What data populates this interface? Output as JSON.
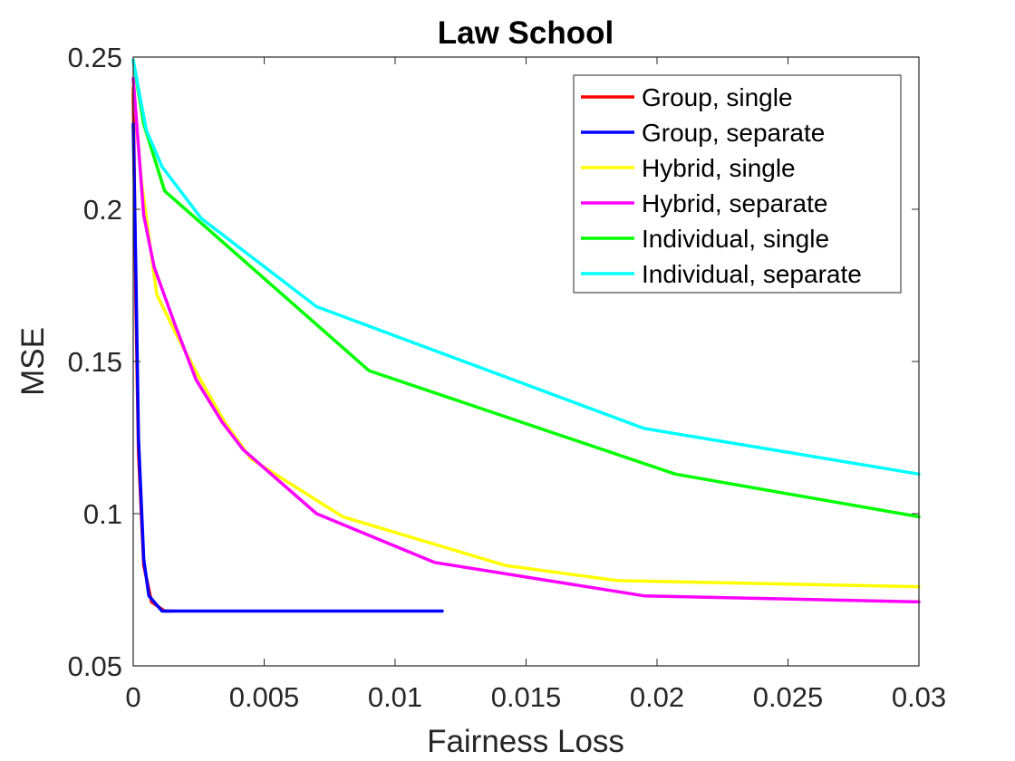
{
  "chart_data": {
    "type": "line",
    "title": "Law School",
    "xlabel": "Fairness Loss",
    "ylabel": "MSE",
    "xlim": [
      0,
      0.03
    ],
    "ylim": [
      0.05,
      0.25
    ],
    "xticks": [
      0,
      0.005,
      0.01,
      0.015,
      0.02,
      0.025,
      0.03
    ],
    "xtick_labels": [
      "0",
      "0.005",
      "0.01",
      "0.015",
      "0.02",
      "0.025",
      "0.03"
    ],
    "yticks": [
      0.05,
      0.1,
      0.15,
      0.2,
      0.25
    ],
    "ytick_labels": [
      "0.05",
      "0.1",
      "0.15",
      "0.2",
      "0.25"
    ],
    "grid": false,
    "legend_position": "top-right",
    "series": [
      {
        "name": "Group, single",
        "color": "#ff0000",
        "points": [
          [
            0,
            0.24
          ],
          [
            0.0001,
            0.17
          ],
          [
            0.0002,
            0.12
          ],
          [
            0.0004,
            0.083
          ],
          [
            0.0007,
            0.071
          ],
          [
            0.0012,
            0.068
          ],
          [
            0.0015,
            0.068
          ]
        ]
      },
      {
        "name": "Group, separate",
        "color": "#0000ff",
        "points": [
          [
            0,
            0.228
          ],
          [
            0.0001,
            0.18
          ],
          [
            0.0002,
            0.125
          ],
          [
            0.0004,
            0.085
          ],
          [
            0.0006,
            0.073
          ],
          [
            0.0011,
            0.068
          ],
          [
            0.0118,
            0.068
          ]
        ]
      },
      {
        "name": "Hybrid, single",
        "color": "#ffff00",
        "points": [
          [
            0,
            0.242
          ],
          [
            0.0003,
            0.21
          ],
          [
            0.0009,
            0.172
          ],
          [
            0.0017,
            0.158
          ],
          [
            0.0025,
            0.145
          ],
          [
            0.0035,
            0.13
          ],
          [
            0.0045,
            0.118
          ],
          [
            0.008,
            0.099
          ],
          [
            0.0142,
            0.083
          ],
          [
            0.0185,
            0.078
          ],
          [
            0.03,
            0.076
          ]
        ]
      },
      {
        "name": "Hybrid, separate",
        "color": "#ff00ff",
        "points": [
          [
            0,
            0.243
          ],
          [
            0.0004,
            0.198
          ],
          [
            0.0008,
            0.181
          ],
          [
            0.0016,
            0.162
          ],
          [
            0.0024,
            0.144
          ],
          [
            0.0034,
            0.13
          ],
          [
            0.0042,
            0.121
          ],
          [
            0.007,
            0.1
          ],
          [
            0.0115,
            0.084
          ],
          [
            0.0195,
            0.073
          ],
          [
            0.03,
            0.071
          ]
        ]
      },
      {
        "name": "Individual, single",
        "color": "#00ff00",
        "points": [
          [
            0,
            0.249
          ],
          [
            0.0004,
            0.228
          ],
          [
            0.0012,
            0.206
          ],
          [
            0.009,
            0.147
          ],
          [
            0.0207,
            0.113
          ],
          [
            0.03,
            0.099
          ]
        ]
      },
      {
        "name": "Individual, separate",
        "color": "#00ffff",
        "points": [
          [
            0,
            0.249
          ],
          [
            0.0005,
            0.226
          ],
          [
            0.0011,
            0.214
          ],
          [
            0.0026,
            0.197
          ],
          [
            0.007,
            0.168
          ],
          [
            0.0195,
            0.128
          ],
          [
            0.03,
            0.113
          ]
        ]
      }
    ]
  }
}
